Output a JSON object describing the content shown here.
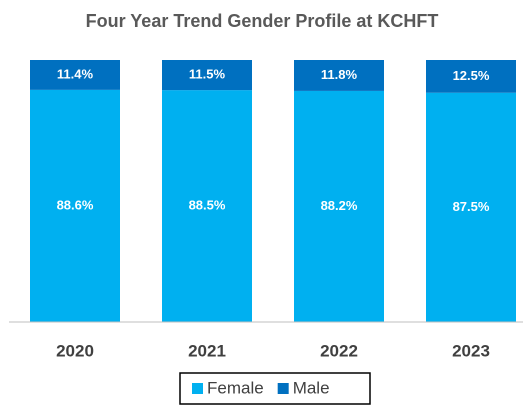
{
  "chart_data": {
    "type": "stacked_bar",
    "title": "Four Year Trend Gender Profile at KCHFT",
    "categories": [
      "2020",
      "2021",
      "2022",
      "2023"
    ],
    "series": [
      {
        "name": "Female",
        "color": "#00b0f0",
        "values": [
          88.6,
          88.5,
          88.2,
          87.5
        ],
        "value_labels": [
          "88.6%",
          "88.5%",
          "88.2%",
          "87.5%"
        ]
      },
      {
        "name": "Male",
        "color": "#0070c0",
        "values": [
          11.4,
          11.5,
          11.8,
          12.5
        ],
        "value_labels": [
          "11.4%",
          "11.5%",
          "11.8%",
          "12.5%"
        ]
      }
    ],
    "ylim": [
      0,
      100
    ],
    "legend": "bottom"
  }
}
